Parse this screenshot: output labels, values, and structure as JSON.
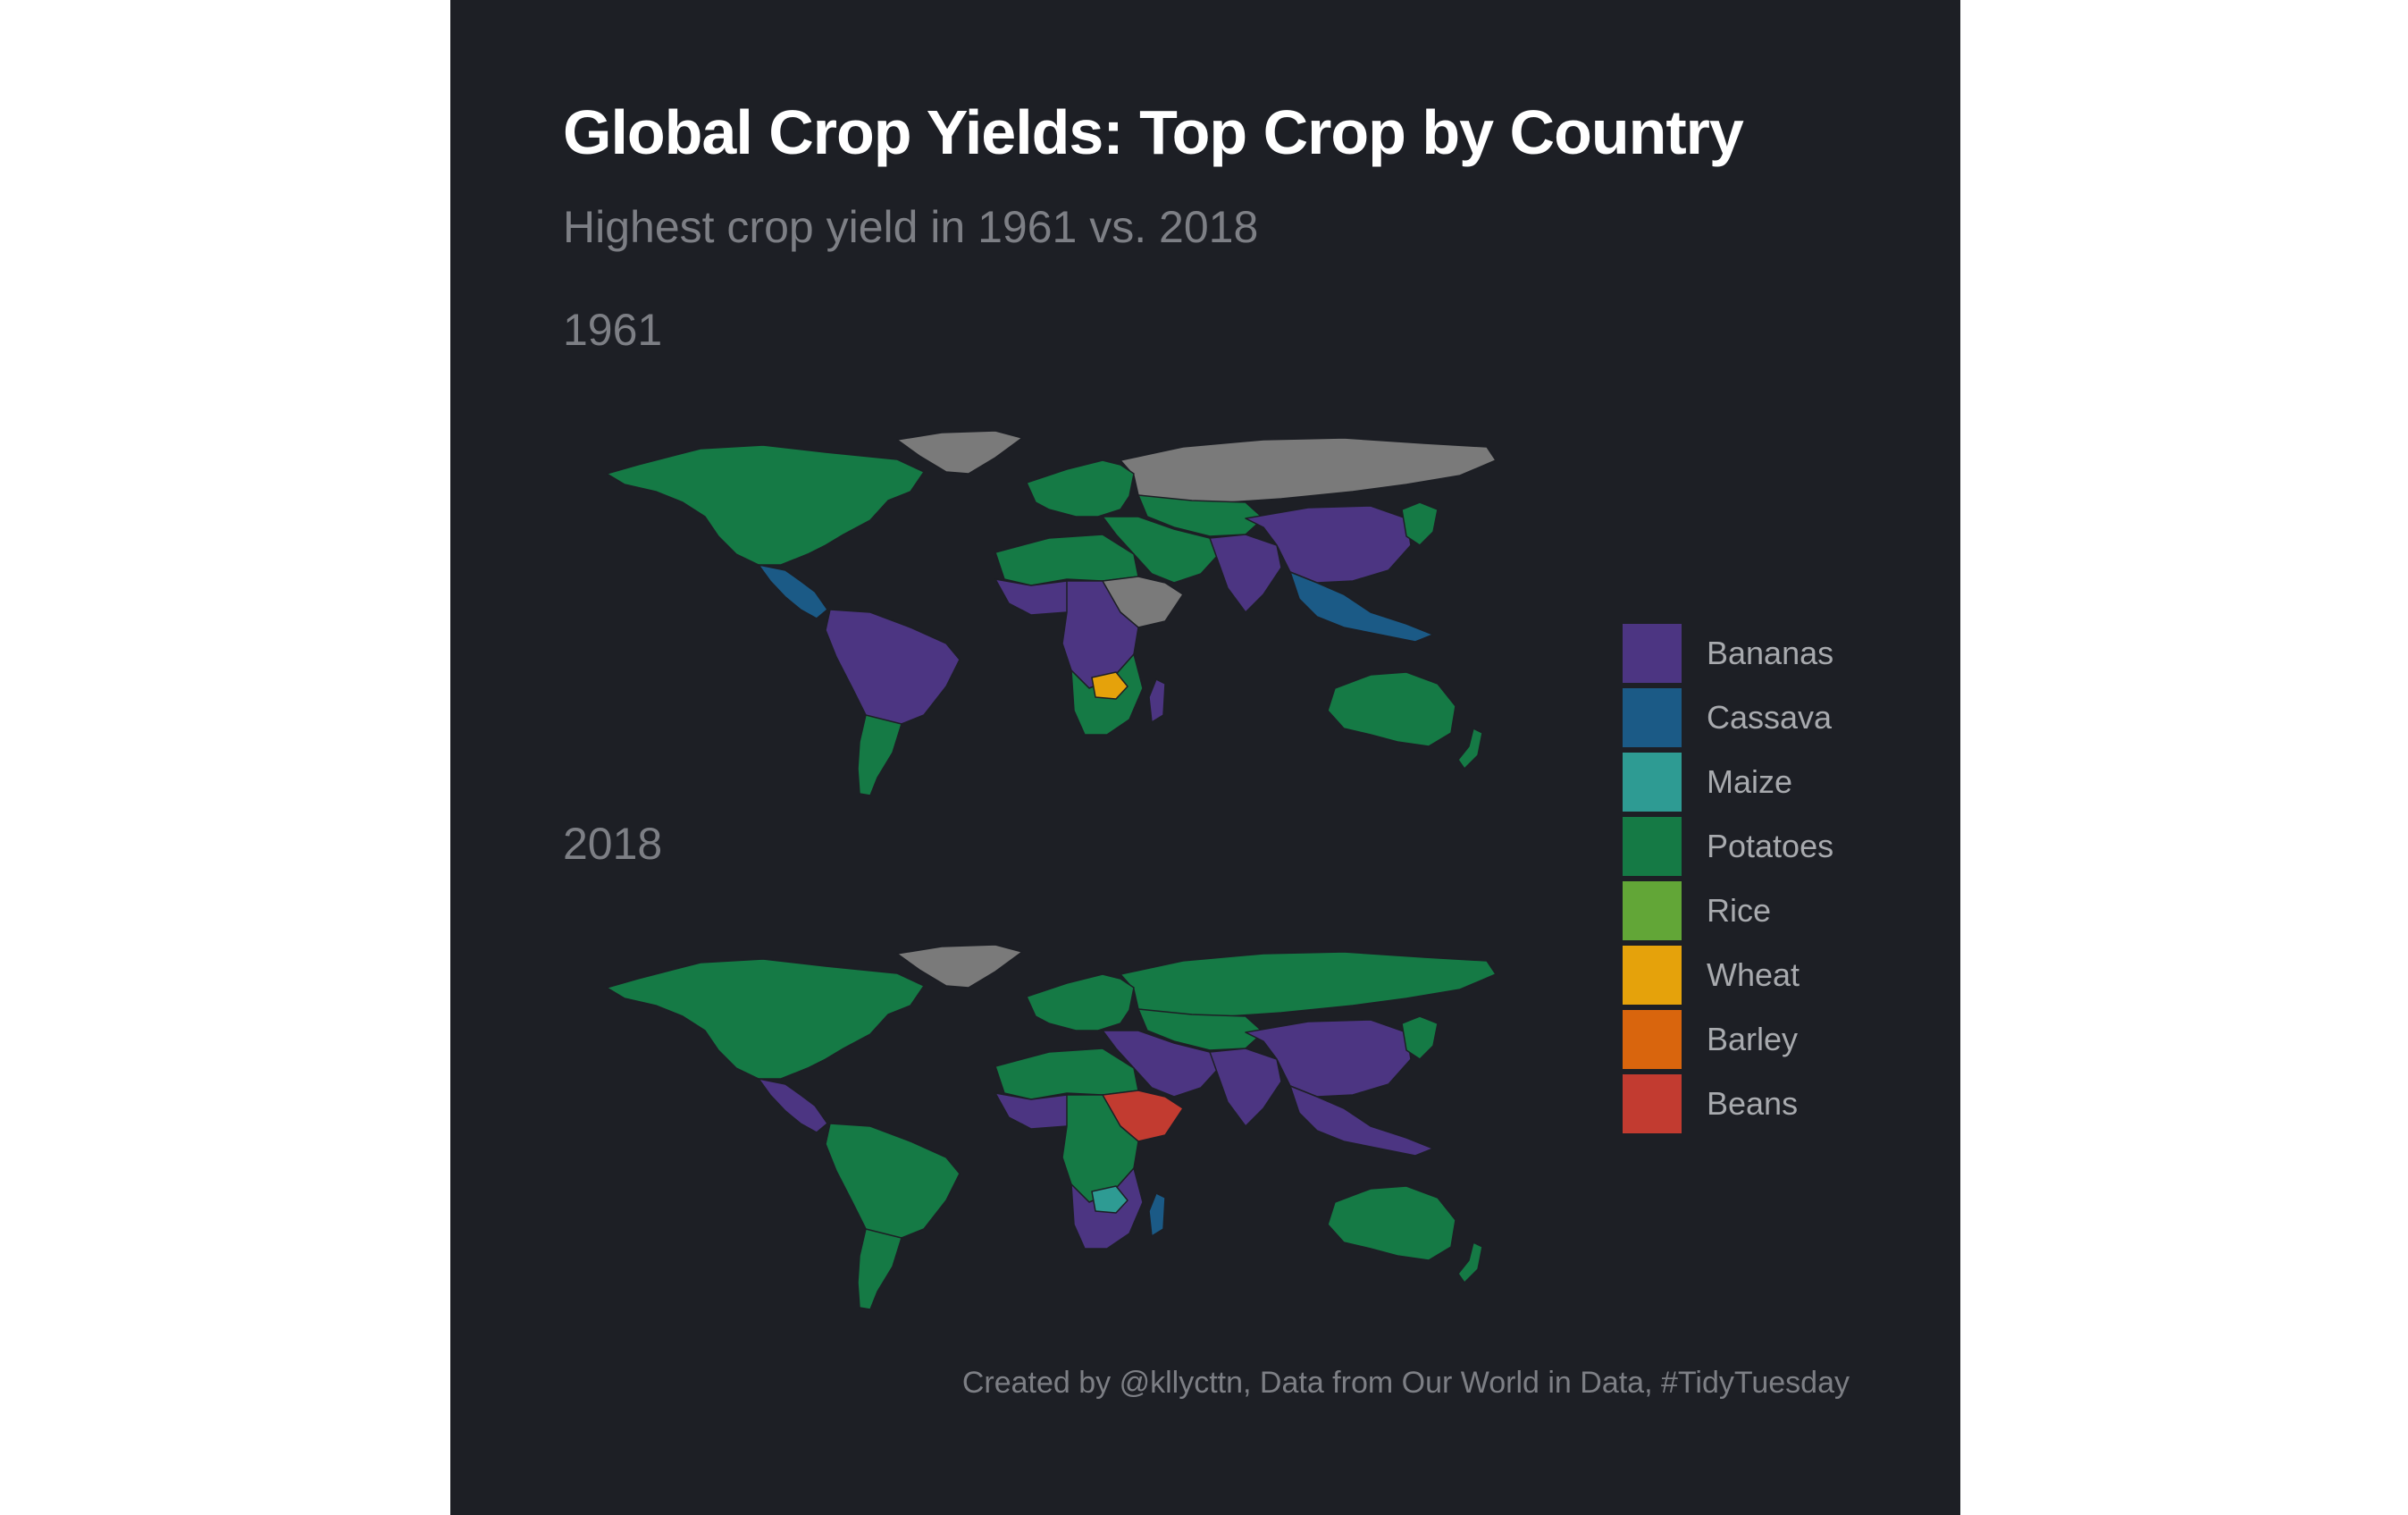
{
  "title": "Global Crop Yields: Top Crop by Country",
  "subtitle": "Highest crop yield in 1961 vs. 2018",
  "caption": "Created by @kllycttn, Data from Our World in Data, #TidyTuesday",
  "colors": {
    "background": "#1d1f25",
    "no_data": "#7a7a7a"
  },
  "legend": {
    "items": [
      {
        "label": "Bananas",
        "color": "#4c3582"
      },
      {
        "label": "Cassava",
        "color": "#1b5a86"
      },
      {
        "label": "Maize",
        "color": "#2e9b93"
      },
      {
        "label": "Potatoes",
        "color": "#157a45"
      },
      {
        "label": "Rice",
        "color": "#62a637"
      },
      {
        "label": "Wheat",
        "color": "#e5a20b"
      },
      {
        "label": "Barley",
        "color": "#d9650d"
      },
      {
        "label": "Beans",
        "color": "#c23b30"
      }
    ]
  },
  "maps": [
    {
      "year_label": "1961",
      "regions": {
        "north_america": "Potatoes",
        "greenland": "No data",
        "central_america": "Cassava",
        "south_america": "Bananas",
        "south_america_south": "Potatoes",
        "europe": "Potatoes",
        "russia": "No data",
        "central_asia": "Potatoes",
        "middle_east": "Potatoes",
        "south_asia": "Bananas",
        "china": "Bananas",
        "japan_korea": "Potatoes",
        "southeast_asia": "Cassava",
        "north_africa": "Potatoes",
        "west_africa": "Bananas",
        "horn_of_africa": "No data",
        "central_africa": "Bananas",
        "southern_africa": "Potatoes",
        "zimbabwe": "Wheat",
        "madagascar": "Bananas",
        "australia": "Potatoes",
        "new_zealand": "Potatoes"
      }
    },
    {
      "year_label": "2018",
      "regions": {
        "north_america": "Potatoes",
        "greenland": "No data",
        "central_america": "Bananas",
        "south_america": "Potatoes",
        "south_america_south": "Potatoes",
        "europe": "Potatoes",
        "russia": "Potatoes",
        "central_asia": "Potatoes",
        "middle_east": "Bananas",
        "south_asia": "Bananas",
        "china": "Bananas",
        "japan_korea": "Potatoes",
        "southeast_asia": "Bananas",
        "north_africa": "Potatoes",
        "west_africa": "Bananas",
        "horn_of_africa": "Beans",
        "central_africa": "Potatoes",
        "southern_africa": "Bananas",
        "zimbabwe": "Maize",
        "madagascar": "Cassava",
        "australia": "Potatoes",
        "new_zealand": "Potatoes"
      }
    }
  ]
}
